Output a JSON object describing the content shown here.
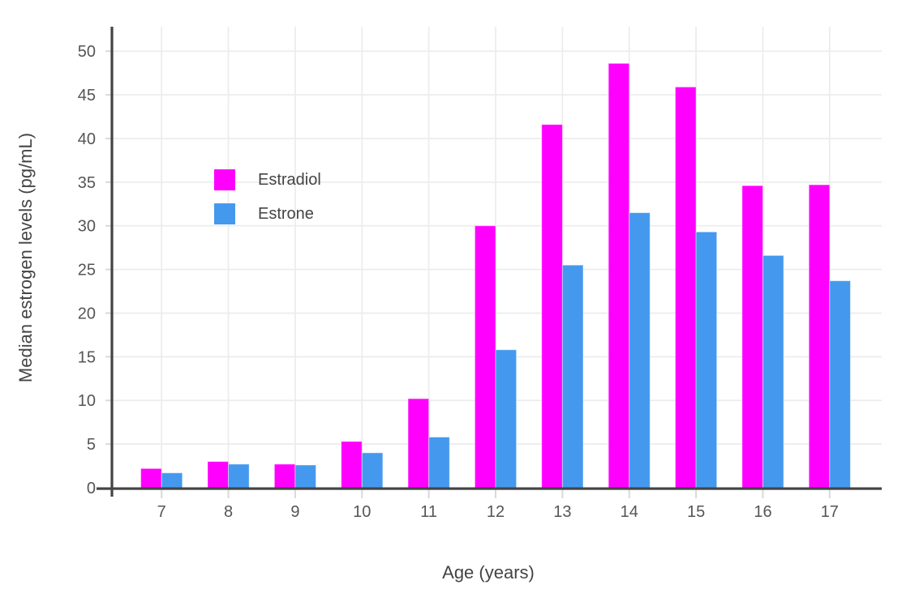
{
  "chart_data": {
    "type": "bar",
    "title": "",
    "xlabel": "Age (years)",
    "ylabel": "Median estrogen levels (pg/mL)",
    "categories": [
      7,
      8,
      9,
      10,
      11,
      12,
      13,
      14,
      15,
      16,
      17
    ],
    "series": [
      {
        "name": "Estradiol",
        "color": "#FF00FF",
        "values": [
          2.2,
          3.0,
          2.7,
          5.3,
          10.2,
          30.0,
          41.6,
          48.6,
          45.9,
          34.6,
          34.7
        ]
      },
      {
        "name": "Estrone",
        "color": "#4499EE",
        "values": [
          1.7,
          2.7,
          2.6,
          4.0,
          5.8,
          15.8,
          25.5,
          31.5,
          29.3,
          26.6,
          23.7
        ]
      }
    ],
    "ylim": [
      0,
      52.8
    ],
    "yticks": [
      0,
      5,
      10,
      15,
      20,
      25,
      30,
      35,
      40,
      45,
      50
    ],
    "grid": true,
    "legend_position": "inside-top-left",
    "style": {
      "background": "#FFFFFF",
      "axis_line_color": "#444444",
      "tick_label_color": "#555555",
      "axis_title_color": "#444444",
      "grid_color": "#ECECEC",
      "tick_mark_color": "#D9D9D9",
      "bar_edge_color": "rgba(255,255,255,0.45)"
    }
  }
}
